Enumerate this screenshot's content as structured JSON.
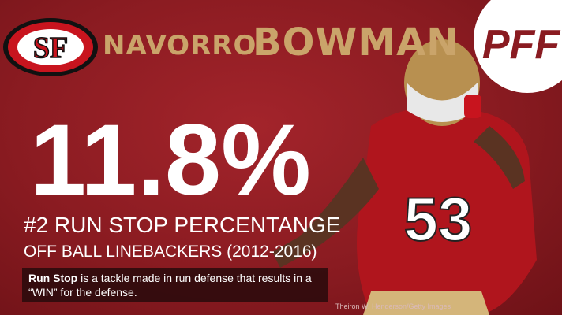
{
  "team_logo": {
    "text": "SF"
  },
  "player": {
    "first_name": "NAVORRO",
    "last_name": "BOWMAN",
    "jersey_number": "53"
  },
  "brand": {
    "text": "PFF"
  },
  "stat": {
    "value": "11.8%",
    "rank_label": "#2 RUN STOP PERCENTANGE",
    "group": "OFF BALL LINEBACKERS (2012-2016)"
  },
  "definition": {
    "term": "Run Stop",
    "text": " is a tackle made in run defense that results in a “WIN” for the defense."
  },
  "credit": "Theiron W. Henderson/Getty Images"
}
